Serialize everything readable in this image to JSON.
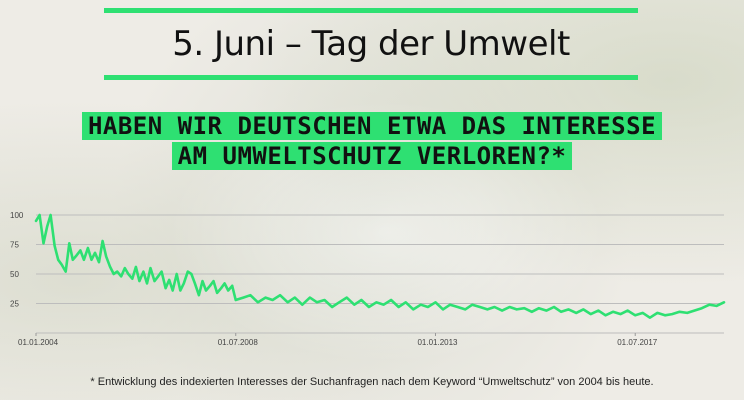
{
  "header": {
    "title": "5. Juni – Tag der Umwelt",
    "headline_line1": "HABEN WIR DEUTSCHEN ETWA DAS INTERESSE",
    "headline_line2": "AM UMWELTSCHUTZ VERLOREN?*"
  },
  "footnote": "* Entwicklung des indexierten Interesses der Suchanfragen nach dem Keyword “Umweltschutz” von 2004 bis heute.",
  "colors": {
    "accent": "#2ee072",
    "line": "#2ee072",
    "grid": "#bdbdbd"
  },
  "chart_data": {
    "type": "line",
    "title": "",
    "xlabel": "",
    "ylabel": "",
    "ylim": [
      0,
      100
    ],
    "yticks": [
      "100",
      "75",
      "50",
      "25"
    ],
    "xticks": [
      "01.01.2004",
      "01.07.2008",
      "01.01.2013",
      "01.07.2017"
    ],
    "xrange": [
      "2004-01",
      "2019-06"
    ],
    "grid": true,
    "series": [
      {
        "values": [
          [
            2004.0,
            95
          ],
          [
            2004.08,
            100
          ],
          [
            2004.17,
            76
          ],
          [
            2004.25,
            90
          ],
          [
            2004.33,
            100
          ],
          [
            2004.42,
            74
          ],
          [
            2004.5,
            62
          ],
          [
            2004.58,
            58
          ],
          [
            2004.67,
            52
          ],
          [
            2004.75,
            76
          ],
          [
            2004.83,
            62
          ],
          [
            2004.92,
            66
          ],
          [
            2005.0,
            70
          ],
          [
            2005.08,
            62
          ],
          [
            2005.17,
            72
          ],
          [
            2005.25,
            62
          ],
          [
            2005.33,
            68
          ],
          [
            2005.42,
            60
          ],
          [
            2005.5,
            78
          ],
          [
            2005.58,
            65
          ],
          [
            2005.67,
            56
          ],
          [
            2005.75,
            50
          ],
          [
            2005.83,
            52
          ],
          [
            2005.92,
            48
          ],
          [
            2006.0,
            55
          ],
          [
            2006.08,
            50
          ],
          [
            2006.17,
            46
          ],
          [
            2006.25,
            56
          ],
          [
            2006.33,
            44
          ],
          [
            2006.42,
            52
          ],
          [
            2006.5,
            42
          ],
          [
            2006.58,
            55
          ],
          [
            2006.67,
            44
          ],
          [
            2006.75,
            48
          ],
          [
            2006.83,
            52
          ],
          [
            2006.92,
            38
          ],
          [
            2007.0,
            45
          ],
          [
            2007.08,
            36
          ],
          [
            2007.17,
            50
          ],
          [
            2007.25,
            36
          ],
          [
            2007.33,
            42
          ],
          [
            2007.42,
            52
          ],
          [
            2007.5,
            50
          ],
          [
            2007.58,
            42
          ],
          [
            2007.67,
            32
          ],
          [
            2007.75,
            44
          ],
          [
            2007.83,
            36
          ],
          [
            2007.92,
            40
          ],
          [
            2008.0,
            44
          ],
          [
            2008.08,
            34
          ],
          [
            2008.17,
            38
          ],
          [
            2008.25,
            42
          ],
          [
            2008.33,
            36
          ],
          [
            2008.42,
            40
          ],
          [
            2008.5,
            28
          ],
          [
            2008.67,
            30
          ],
          [
            2008.83,
            32
          ],
          [
            2009.0,
            26
          ],
          [
            2009.17,
            30
          ],
          [
            2009.33,
            28
          ],
          [
            2009.5,
            32
          ],
          [
            2009.67,
            26
          ],
          [
            2009.83,
            30
          ],
          [
            2010.0,
            24
          ],
          [
            2010.17,
            30
          ],
          [
            2010.33,
            26
          ],
          [
            2010.5,
            28
          ],
          [
            2010.67,
            22
          ],
          [
            2010.83,
            26
          ],
          [
            2011.0,
            30
          ],
          [
            2011.17,
            24
          ],
          [
            2011.33,
            28
          ],
          [
            2011.5,
            22
          ],
          [
            2011.67,
            26
          ],
          [
            2011.83,
            24
          ],
          [
            2012.0,
            28
          ],
          [
            2012.17,
            22
          ],
          [
            2012.33,
            26
          ],
          [
            2012.5,
            20
          ],
          [
            2012.67,
            24
          ],
          [
            2012.83,
            22
          ],
          [
            2013.0,
            26
          ],
          [
            2013.17,
            20
          ],
          [
            2013.33,
            24
          ],
          [
            2013.5,
            22
          ],
          [
            2013.67,
            20
          ],
          [
            2013.83,
            24
          ],
          [
            2014.0,
            22
          ],
          [
            2014.17,
            20
          ],
          [
            2014.33,
            22
          ],
          [
            2014.5,
            19
          ],
          [
            2014.67,
            22
          ],
          [
            2014.83,
            20
          ],
          [
            2015.0,
            21
          ],
          [
            2015.17,
            18
          ],
          [
            2015.33,
            21
          ],
          [
            2015.5,
            19
          ],
          [
            2015.67,
            22
          ],
          [
            2015.83,
            18
          ],
          [
            2016.0,
            20
          ],
          [
            2016.17,
            17
          ],
          [
            2016.33,
            20
          ],
          [
            2016.5,
            16
          ],
          [
            2016.67,
            19
          ],
          [
            2016.83,
            15
          ],
          [
            2017.0,
            18
          ],
          [
            2017.17,
            16
          ],
          [
            2017.33,
            19
          ],
          [
            2017.5,
            15
          ],
          [
            2017.67,
            17
          ],
          [
            2017.83,
            13
          ],
          [
            2018.0,
            17
          ],
          [
            2018.17,
            15
          ],
          [
            2018.33,
            16
          ],
          [
            2018.5,
            18
          ],
          [
            2018.67,
            17
          ],
          [
            2018.83,
            19
          ],
          [
            2019.0,
            21
          ],
          [
            2019.17,
            24
          ],
          [
            2019.33,
            23
          ],
          [
            2019.5,
            26
          ]
        ]
      }
    ]
  }
}
